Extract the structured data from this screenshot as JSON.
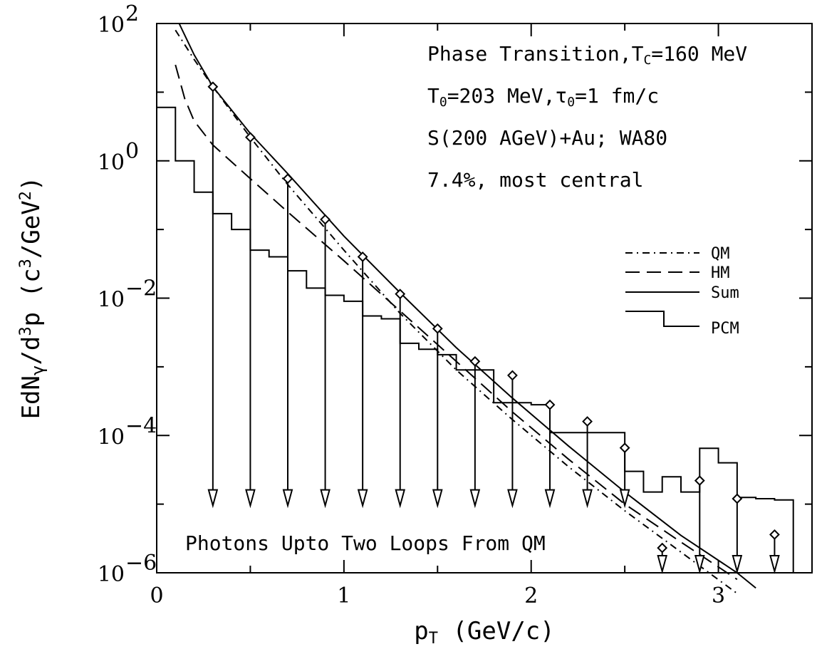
{
  "chart_data": {
    "type": "line",
    "title": "",
    "xlabel": {
      "main": "p",
      "sub": "T",
      "rest": " (GeV/c)"
    },
    "ylabel": {
      "p1": "EdN",
      "sub1": "γ",
      "p2": "/d",
      "sup1": "3",
      "p3": "p (c",
      "sup2": "3",
      "p4": "/GeV",
      "sup3": "2",
      "p5": ")"
    },
    "xlim": [
      0,
      3.5
    ],
    "ylim_log10": [
      -6,
      2
    ],
    "y_scale": "log",
    "x_ticks": [
      {
        "v": 0,
        "label": "0"
      },
      {
        "v": 1,
        "label": "1"
      },
      {
        "v": 2,
        "label": "2"
      },
      {
        "v": 3,
        "label": "3"
      }
    ],
    "y_ticks": [
      {
        "exp": 2,
        "base": "10",
        "sup": "2"
      },
      {
        "exp": 0,
        "base": "10",
        "sup": "0"
      },
      {
        "exp": -2,
        "base": "10",
        "sup": "−2"
      },
      {
        "exp": -4,
        "base": "10",
        "sup": "−4"
      },
      {
        "exp": -6,
        "base": "10",
        "sup": "−6"
      }
    ],
    "annotations": [
      {
        "parts": [
          {
            "t": "Phase Transition,T"
          },
          {
            "t": "C",
            "sub": true
          },
          {
            "t": "=160 MeV"
          }
        ]
      },
      {
        "parts": [
          {
            "t": "T"
          },
          {
            "t": "0",
            "sub": true
          },
          {
            "t": "=203 MeV,"
          },
          {
            "t": "τ"
          },
          {
            "t": "0",
            "sub": true
          },
          {
            "t": "=1 fm/c"
          }
        ]
      },
      {
        "parts": [
          {
            "t": "S(200 AGeV)+Au; WA80"
          }
        ]
      },
      {
        "parts": [
          {
            "t": "7.4%, most central"
          }
        ]
      }
    ],
    "bottom_text": "Photons Upto Two Loops From QM",
    "legend": [
      "QM",
      "HM",
      "Sum",
      "PCM"
    ],
    "legend_position": "right",
    "series": [
      {
        "name": "QM",
        "style": "dash-dot",
        "x": [
          0.1,
          0.2,
          0.3,
          0.5,
          0.7,
          1.0,
          1.3,
          1.6,
          1.9,
          2.2,
          2.5,
          2.8,
          3.1
        ],
        "y": [
          80,
          30,
          12,
          2.2,
          0.45,
          0.05,
          0.006,
          0.0009,
          0.00017,
          3.5e-05,
          8e-06,
          2e-06,
          5e-07
        ]
      },
      {
        "name": "HM",
        "style": "dashed",
        "x": [
          0.1,
          0.15,
          0.2,
          0.3,
          0.5,
          0.7,
          1.0,
          1.3,
          1.6,
          1.9,
          2.2,
          2.5,
          2.8,
          3.1
        ],
        "y": [
          25,
          8,
          3.8,
          1.7,
          0.55,
          0.18,
          0.035,
          0.0065,
          0.0012,
          0.00022,
          4.5e-05,
          1e-05,
          2.8e-06,
          8e-07
        ]
      },
      {
        "name": "Sum",
        "style": "solid",
        "x": [
          0.12,
          0.2,
          0.3,
          0.5,
          0.7,
          1.0,
          1.3,
          1.6,
          1.9,
          2.2,
          2.5,
          2.8,
          3.1,
          3.2
        ],
        "y": [
          100,
          35,
          12,
          2.5,
          0.65,
          0.08,
          0.012,
          0.0019,
          0.00035,
          7e-05,
          1.5e-05,
          3.5e-06,
          1e-06,
          6e-07
        ]
      },
      {
        "name": "PCM",
        "style": "histogram",
        "edges": [
          0,
          0.1,
          0.2,
          0.3,
          0.4,
          0.5,
          0.6,
          0.7,
          0.8,
          0.9,
          1.0,
          1.1,
          1.2,
          1.3,
          1.4,
          1.5,
          1.6,
          1.7,
          1.8,
          1.9,
          2.0,
          2.1,
          2.2,
          2.3,
          2.4,
          2.5,
          2.6,
          2.7,
          2.8,
          2.9,
          3.0,
          3.1,
          3.2,
          3.3,
          3.4
        ],
        "values": [
          6,
          1.0,
          0.35,
          0.17,
          0.1,
          0.05,
          0.04,
          0.025,
          0.014,
          0.011,
          0.009,
          0.0055,
          0.005,
          0.0022,
          0.0018,
          0.0015,
          0.0009,
          0.0009,
          0.0003,
          0.0003,
          0.00028,
          0.00011,
          0.00011,
          0.00011,
          0.00011,
          3e-05,
          1.5e-05,
          2.5e-05,
          1.5e-05,
          6.5e-05,
          4e-05,
          1.25e-05,
          1.2e-05,
          1.15e-05
        ]
      }
    ],
    "data_points": {
      "name": "WA80 upper limits",
      "marker": "diamond-with-down-arrow",
      "points": [
        {
          "x": 0.3,
          "y": 12,
          "arrow_to": 1e-05
        },
        {
          "x": 0.5,
          "y": 2.2,
          "arrow_to": 1e-05
        },
        {
          "x": 0.7,
          "y": 0.55,
          "arrow_to": 1e-05
        },
        {
          "x": 0.9,
          "y": 0.14,
          "arrow_to": 1e-05
        },
        {
          "x": 1.1,
          "y": 0.04,
          "arrow_to": 1e-05
        },
        {
          "x": 1.3,
          "y": 0.0115,
          "arrow_to": 1e-05
        },
        {
          "x": 1.5,
          "y": 0.0036,
          "arrow_to": 1e-05
        },
        {
          "x": 1.7,
          "y": 0.0012,
          "arrow_to": 1e-05
        },
        {
          "x": 1.9,
          "y": 0.00075,
          "arrow_to": 1e-05
        },
        {
          "x": 2.1,
          "y": 0.00028,
          "arrow_to": 1e-05
        },
        {
          "x": 2.3,
          "y": 0.00016,
          "arrow_to": 1e-05
        },
        {
          "x": 2.5,
          "y": 6.6e-05,
          "arrow_to": 1e-05
        },
        {
          "x": 2.7,
          "y": 2.3e-06,
          "arrow_to": 1.1e-06
        },
        {
          "x": 2.9,
          "y": 2.2e-05,
          "arrow_to": 1.1e-06
        },
        {
          "x": 3.1,
          "y": 1.2e-05,
          "arrow_to": 1.1e-06
        },
        {
          "x": 3.3,
          "y": 3.6e-06,
          "arrow_to": 1.1e-06
        }
      ]
    }
  }
}
